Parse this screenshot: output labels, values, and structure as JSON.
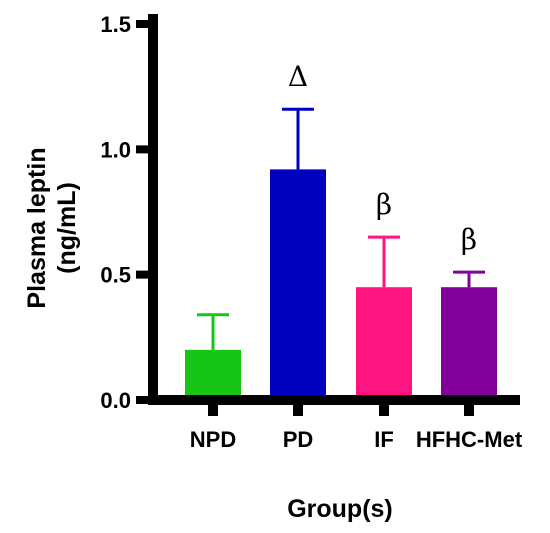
{
  "chart_data": {
    "type": "bar",
    "categories": [
      "NPD",
      "PD",
      "IF",
      "HFHC-Met"
    ],
    "values": [
      0.2,
      0.92,
      0.45,
      0.45
    ],
    "errors": [
      0.14,
      0.24,
      0.2,
      0.06
    ],
    "colors": [
      "#16c516",
      "#0000c0",
      "#ff1480",
      "#800099"
    ],
    "annotations": [
      "",
      "Δ",
      "β",
      "β"
    ],
    "ylabel_line1": "Plasma leptin",
    "ylabel_line2": "(ng/mL)",
    "xlabel": "Group(s)",
    "ylim": [
      0,
      1.5
    ],
    "yticks": [
      0.0,
      0.5,
      1.0,
      1.5
    ],
    "ytick_labels": [
      "0.0",
      "0.5",
      "1.0",
      "1.5"
    ]
  }
}
